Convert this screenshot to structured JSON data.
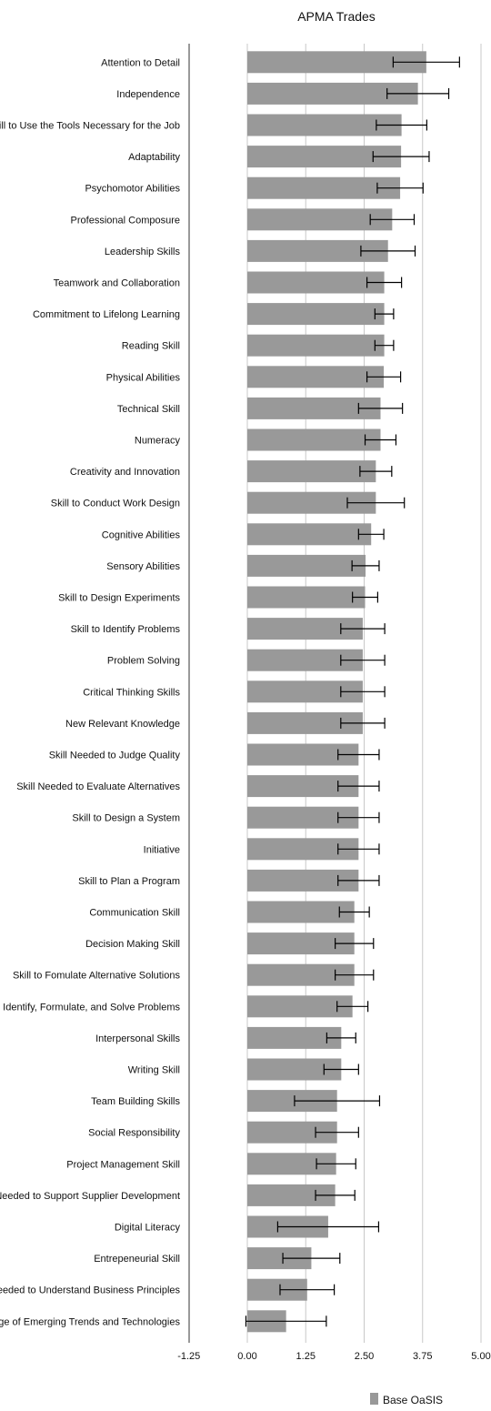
{
  "chart_data": {
    "type": "bar",
    "orientation": "horizontal",
    "title": "APMA Trades",
    "xlim": [
      -1.25,
      5.0
    ],
    "x_ticks": [
      "-1.25",
      "0.00",
      "1.25",
      "2.50",
      "3.75",
      "5.00"
    ],
    "grid": true,
    "legend_position": "bottom-right",
    "colors": {
      "bar": "#999999",
      "error": "#000000",
      "grid": "#c8c8c8"
    },
    "series": [
      {
        "name": "Base OaSIS",
        "categories": [
          "Attention to Detail",
          "Independence",
          "Skill to Use the Tools Necessary for the Job",
          "Adaptability",
          "Psychomotor Abilities",
          "Professional Composure",
          "Leadership Skills",
          "Teamwork and Collaboration",
          "Commitment to Lifelong Learning",
          "Reading Skill",
          "Physical Abilities",
          "Technical Skill",
          "Numeracy",
          "Creativity and Innovation",
          "Skill to Conduct Work Design",
          "Cognitive Abilities",
          "Sensory Abilities",
          "Skill to Design Experiments",
          "Skill to Identify Problems",
          "Problem Solving",
          "Critical Thinking Skills",
          "New Relevant Knowledge",
          "Skill Needed to Judge Quality",
          "Skill Needed to Evaluate Alternatives",
          "Skill to Design a System",
          "Initiative",
          "Skill to Plan a Program",
          "Communication Skill",
          "Decision Making Skill",
          "Skill to Fomulate Alternative Solutions",
          "Skill to Identify, Formulate, and Solve Problems",
          "Interpersonal Skills",
          "Writing Skill",
          "Team Building Skills",
          "Social Responsibility",
          "Project Management Skill",
          "Skill Needed to Support Supplier Development",
          "Digital Literacy",
          "Entrepeneurial Skill",
          "Skill Needed to Understand Business Principles",
          "Knowledge of Emerging Trends and Technologies"
        ],
        "values": [
          3.83,
          3.65,
          3.3,
          3.29,
          3.27,
          3.1,
          3.01,
          2.93,
          2.93,
          2.93,
          2.92,
          2.85,
          2.85,
          2.75,
          2.75,
          2.65,
          2.53,
          2.52,
          2.47,
          2.47,
          2.47,
          2.47,
          2.38,
          2.38,
          2.38,
          2.38,
          2.38,
          2.29,
          2.29,
          2.29,
          2.25,
          2.01,
          2.01,
          1.92,
          1.92,
          1.9,
          1.88,
          1.73,
          1.37,
          1.28,
          0.83
        ],
        "error_low": [
          3.12,
          2.99,
          2.76,
          2.69,
          2.78,
          2.63,
          2.43,
          2.56,
          2.73,
          2.73,
          2.56,
          2.38,
          2.52,
          2.41,
          2.14,
          2.38,
          2.24,
          2.25,
          2.0,
          2.0,
          2.0,
          2.0,
          1.94,
          1.94,
          1.94,
          1.94,
          1.94,
          1.97,
          1.88,
          1.88,
          1.92,
          1.7,
          1.64,
          1.01,
          1.46,
          1.48,
          1.46,
          0.65,
          0.76,
          0.7,
          -0.03
        ],
        "error_high": [
          4.54,
          4.31,
          3.84,
          3.89,
          3.76,
          3.57,
          3.59,
          3.3,
          3.13,
          3.13,
          3.28,
          3.32,
          3.18,
          3.09,
          3.36,
          2.92,
          2.82,
          2.79,
          2.94,
          2.94,
          2.94,
          2.94,
          2.82,
          2.82,
          2.82,
          2.82,
          2.82,
          2.61,
          2.7,
          2.7,
          2.58,
          2.32,
          2.38,
          2.83,
          2.38,
          2.32,
          2.3,
          2.81,
          1.98,
          1.86,
          1.69
        ]
      }
    ]
  }
}
